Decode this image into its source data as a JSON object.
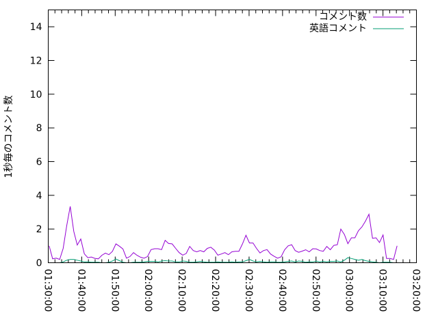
{
  "chart_data": {
    "type": "line",
    "title": "",
    "xlabel": "",
    "ylabel": "1秒毎のコメント数",
    "xlim": [
      "01:30:00",
      "03:20:00"
    ],
    "ylim": [
      0,
      15
    ],
    "x_ticks": [
      "01:30:00",
      "01:40:00",
      "01:50:00",
      "02:00:00",
      "02:10:00",
      "02:20:00",
      "02:30:00",
      "02:40:00",
      "02:50:00",
      "03:00:00",
      "03:10:00",
      "03:20:00"
    ],
    "y_ticks": [
      0,
      2,
      4,
      6,
      8,
      10,
      12,
      14
    ],
    "y_tick_labels": [
      "0",
      "2",
      "4",
      "6",
      "8",
      "10",
      "12",
      "14"
    ],
    "grid": false,
    "legend_position": "top-right",
    "x": [
      "01:30:16",
      "01:31:19",
      "01:32:22",
      "01:33:25",
      "01:34:28",
      "01:35:31",
      "01:36:34",
      "01:37:37",
      "01:38:40",
      "01:39:43",
      "01:40:46",
      "01:41:49",
      "01:42:52",
      "01:43:55",
      "01:44:58",
      "01:46:01",
      "01:47:04",
      "01:48:07",
      "01:49:10",
      "01:50:13",
      "01:51:16",
      "01:52:19",
      "01:53:22",
      "01:54:25",
      "01:55:28",
      "01:56:31",
      "01:57:34",
      "01:58:37",
      "01:59:40",
      "02:00:43",
      "02:01:46",
      "02:02:49",
      "02:03:52",
      "02:04:55",
      "02:05:58",
      "02:07:01",
      "02:08:04",
      "02:09:07",
      "02:10:10",
      "02:11:13",
      "02:12:16",
      "02:13:19",
      "02:14:22",
      "02:15:25",
      "02:16:28",
      "02:17:31",
      "02:18:34",
      "02:19:37",
      "02:20:40",
      "02:21:43",
      "02:22:46",
      "02:23:49",
      "02:24:52",
      "02:25:55",
      "02:26:58",
      "02:28:01",
      "02:29:04",
      "02:30:07",
      "02:31:10",
      "02:32:13",
      "02:33:16",
      "02:34:19",
      "02:35:22",
      "02:36:25",
      "02:37:28",
      "02:38:31",
      "02:39:34",
      "02:40:37",
      "02:41:40",
      "02:42:43",
      "02:43:46",
      "02:44:49",
      "02:45:52",
      "02:46:55",
      "02:47:58",
      "02:49:01",
      "02:50:04",
      "02:51:07",
      "02:52:10",
      "02:53:13",
      "02:54:16",
      "02:55:19",
      "02:56:22",
      "02:57:25",
      "02:58:28",
      "02:59:31",
      "03:00:34",
      "03:01:37",
      "03:02:40",
      "03:03:43",
      "03:04:46",
      "03:05:49",
      "03:06:52",
      "03:07:55",
      "03:08:58",
      "03:10:01",
      "03:11:04",
      "03:12:07",
      "03:13:10",
      "03:14:13"
    ],
    "series": [
      {
        "name": "コメント数",
        "color": "#9400d3",
        "values": [
          1.0,
          0.23,
          0.27,
          0.2,
          0.85,
          2.2,
          3.34,
          1.86,
          1.05,
          1.41,
          0.53,
          0.3,
          0.34,
          0.26,
          0.23,
          0.44,
          0.57,
          0.48,
          0.67,
          1.12,
          0.98,
          0.82,
          0.27,
          0.37,
          0.6,
          0.44,
          0.33,
          0.27,
          0.37,
          0.78,
          0.83,
          0.83,
          0.78,
          1.33,
          1.14,
          1.12,
          0.85,
          0.6,
          0.45,
          0.55,
          0.97,
          0.72,
          0.65,
          0.72,
          0.65,
          0.85,
          0.92,
          0.75,
          0.45,
          0.52,
          0.6,
          0.48,
          0.65,
          0.68,
          0.68,
          1.12,
          1.63,
          1.17,
          1.17,
          0.85,
          0.58,
          0.72,
          0.78,
          0.52,
          0.38,
          0.27,
          0.35,
          0.77,
          1.0,
          1.07,
          0.72,
          0.62,
          0.69,
          0.77,
          0.65,
          0.83,
          0.82,
          0.72,
          0.68,
          0.97,
          0.77,
          1.03,
          1.07,
          2.0,
          1.68,
          1.13,
          1.48,
          1.48,
          1.9,
          2.13,
          2.47,
          2.88,
          1.45,
          1.48,
          1.2,
          1.65,
          0.25,
          0.25,
          0.2,
          1.0
        ]
      },
      {
        "name": "英語コメント",
        "color": "#009e73",
        "values": [
          0,
          0,
          0,
          0,
          0.05,
          0.15,
          0.2,
          0.2,
          0.15,
          0.1,
          0.05,
          0.05,
          0.03,
          0.03,
          0.03,
          0,
          0,
          0.03,
          0.1,
          0.22,
          0.12,
          0.03,
          0,
          0,
          0.03,
          0.03,
          0.03,
          0.05,
          0.08,
          0.08,
          0.08,
          0.05,
          0.1,
          0.12,
          0.1,
          0.1,
          0.05,
          0.05,
          0.1,
          0.08,
          0.03,
          0.03,
          0.05,
          0.08,
          0.05,
          0.03,
          0.03,
          0.03,
          0.05,
          0.03,
          0.03,
          0.03,
          0.05,
          0.03,
          0.05,
          0.05,
          0.12,
          0.2,
          0.1,
          0.05,
          0.08,
          0.05,
          0.03,
          0.05,
          0.05,
          0.03,
          0.03,
          0.05,
          0.08,
          0.1,
          0.05,
          0.1,
          0.08,
          0.03,
          0.05,
          0.05,
          0.1,
          0.05,
          0.08,
          0.05,
          0.08,
          0.08,
          0.1,
          0.05,
          0.15,
          0.3,
          0.25,
          0.2,
          0.15,
          0.2,
          0.12,
          0.08,
          0.05,
          0.03,
          0,
          0.03,
          0.03,
          0.03,
          0,
          0
        ]
      }
    ]
  }
}
